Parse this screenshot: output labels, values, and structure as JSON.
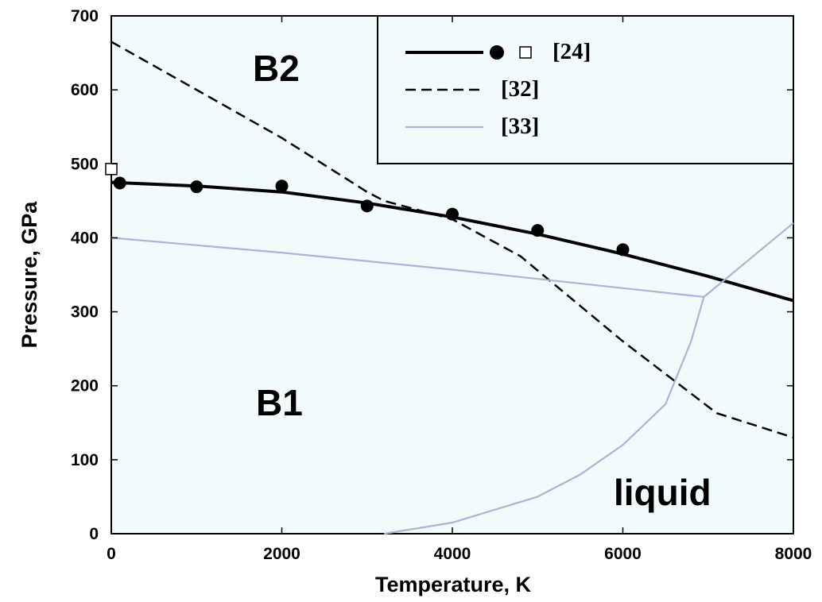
{
  "chart_data": {
    "type": "line",
    "title": "",
    "xlabel": "Temperature, K",
    "ylabel": "Pressure, GPa",
    "xlim": [
      0,
      8000
    ],
    "ylim": [
      0,
      700
    ],
    "xticks": [
      0,
      2000,
      4000,
      6000,
      8000
    ],
    "yticks": [
      0,
      100,
      200,
      300,
      400,
      500,
      600,
      700
    ],
    "grid": false,
    "legend_position": "top-right",
    "colors": {
      "background": "#f2fbfb",
      "solid": "#000000",
      "light": "#a9b4da"
    },
    "region_labels": [
      "B2",
      "B1",
      "liquid"
    ],
    "series": [
      {
        "name": "[24]",
        "style": "solid",
        "x": [
          0,
          1000,
          2000,
          3000,
          4000,
          5000,
          6000,
          7000,
          8000
        ],
        "y": [
          475,
          470,
          462,
          447,
          428,
          405,
          378,
          348,
          315
        ]
      },
      {
        "name": "[24]",
        "style": "filled-circle",
        "x": [
          100,
          1000,
          2000,
          3000,
          4000,
          5000,
          6000
        ],
        "y": [
          474,
          469,
          470,
          443,
          432,
          410,
          384
        ]
      },
      {
        "name": "[24]",
        "style": "open-square",
        "x": [
          0
        ],
        "y": [
          493
        ]
      },
      {
        "name": "[32]",
        "style": "dashed",
        "x": [
          0,
          1000,
          2000,
          3000,
          3200,
          4000,
          4800,
          6000,
          7100,
          8000
        ],
        "y": [
          665,
          600,
          535,
          462,
          450,
          425,
          375,
          260,
          163,
          130
        ]
      },
      {
        "name": "[33]",
        "style": "light",
        "x": [
          0,
          2000,
          4000,
          6000,
          6950
        ],
        "y": [
          400,
          380,
          357,
          332,
          320
        ]
      },
      {
        "name": "[33]",
        "style": "light",
        "x": [
          6950,
          8000
        ],
        "y": [
          320,
          420
        ]
      },
      {
        "name": "[33]",
        "style": "light",
        "x": [
          3200,
          4000,
          5000,
          5500,
          6000,
          6500,
          6800,
          6950
        ],
        "y": [
          0,
          15,
          50,
          80,
          120,
          175,
          260,
          320
        ]
      }
    ]
  }
}
